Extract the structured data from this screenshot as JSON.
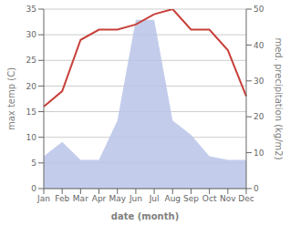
{
  "chart_data": {
    "type": "line",
    "categories": [
      "Jan",
      "Feb",
      "Mar",
      "Apr",
      "May",
      "Jun",
      "Jul",
      "Aug",
      "Sep",
      "Oct",
      "Nov",
      "Dec"
    ],
    "series": [
      {
        "type": "area",
        "axis": "y2",
        "color": "#b8c4e8",
        "values": [
          9,
          13,
          8,
          8,
          19,
          47,
          47,
          19,
          15,
          9,
          8,
          8
        ]
      },
      {
        "type": "line",
        "color": "#c8403a",
        "values": [
          16,
          19,
          29,
          31,
          31,
          32,
          34,
          35,
          31,
          31,
          27,
          18
        ]
      }
    ],
    "xlabel": "date (month)",
    "ylabel": "max temp (C)",
    "y2label": "med. precipitation (kg/m2)",
    "ylim": [
      0,
      35
    ],
    "yticks": [
      0,
      5,
      10,
      15,
      20,
      25,
      30,
      35
    ],
    "y2lim": [
      0,
      50
    ],
    "y2ticks": [
      0,
      10,
      20,
      30,
      40,
      50
    ],
    "grid": true
  }
}
